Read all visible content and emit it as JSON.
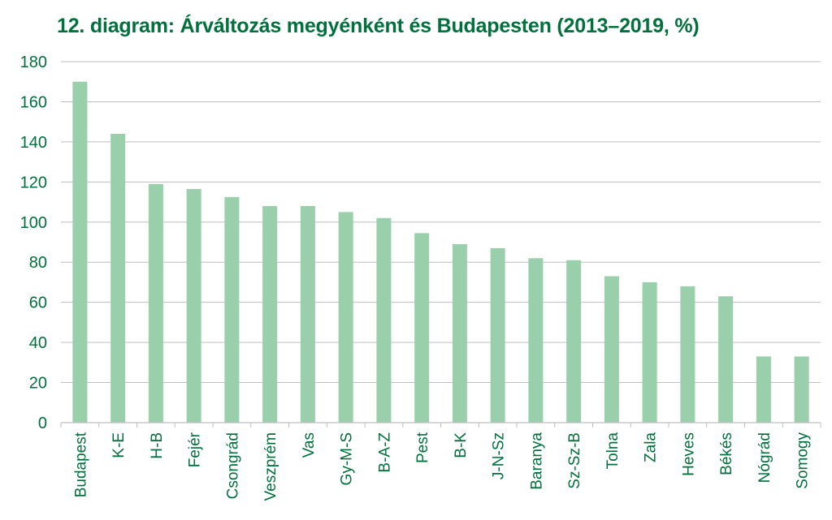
{
  "colors": {
    "title": "#00703c",
    "bar": "#99d0ab",
    "grid": "#bfbfbf",
    "text": "#00703c"
  },
  "chart_data": {
    "type": "bar",
    "title": "12. diagram: Árváltozás megyénként és Budapesten (2013–2019, %)",
    "xlabel": "",
    "ylabel": "",
    "ylim": [
      0,
      180
    ],
    "yticks": [
      0,
      20,
      40,
      60,
      80,
      100,
      120,
      140,
      160,
      180
    ],
    "grid": "horizontal",
    "categories": [
      "Budapest",
      "K-E",
      "H-B",
      "Fejér",
      "Csongrád",
      "Veszprém",
      "Vas",
      "Gy-M-S",
      "B-A-Z",
      "Pest",
      "B-K",
      "J-N-Sz",
      "Baranya",
      "Sz-Sz-B",
      "Tolna",
      "Zala",
      "Heves",
      "Békés",
      "Nógrád",
      "Somogy"
    ],
    "values": [
      170,
      144,
      119,
      116.5,
      112.5,
      108,
      108,
      105,
      102,
      94.5,
      89,
      87,
      82,
      81,
      73,
      70,
      68,
      63,
      33,
      33
    ]
  }
}
